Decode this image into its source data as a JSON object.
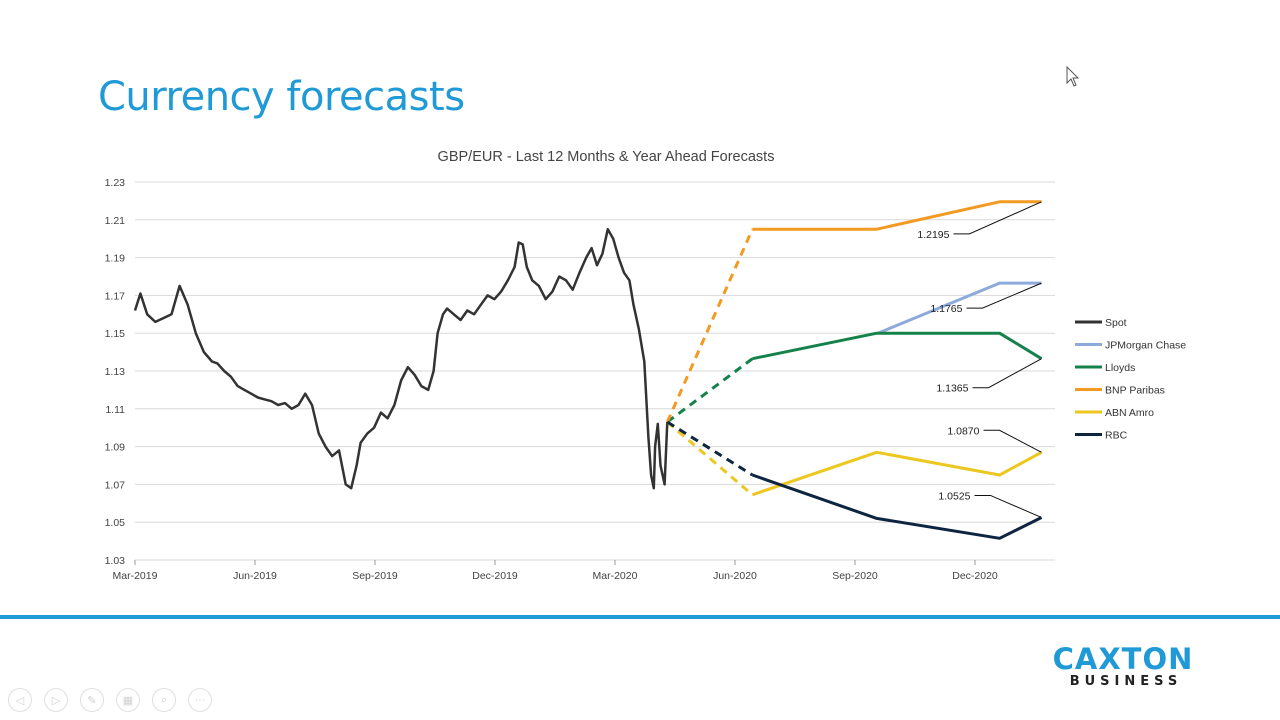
{
  "slide": {
    "title": "Currency forecasts"
  },
  "logo": {
    "main": "CAXTON",
    "sub": "BUSINESS",
    "color": "#1f9ad6"
  },
  "nav": {
    "icons": [
      "previous-icon",
      "play-icon",
      "pen-icon",
      "slides-icon",
      "zoom-icon",
      "more-icon"
    ],
    "glyphs": [
      "◁",
      "▷",
      "✎",
      "▦",
      "⌕",
      "···"
    ]
  },
  "chart_data": {
    "type": "line",
    "title": "GBP/EUR - Last 12 Months & Year Ahead Forecasts",
    "xlabel": "",
    "ylabel": "",
    "x_ticks": [
      "Mar-2019",
      "Jun-2019",
      "Sep-2019",
      "Dec-2019",
      "Mar-2020",
      "Jun-2020",
      "Sep-2020",
      "Dec-2020"
    ],
    "x_range": [
      "2019-03-01",
      "2021-01-10"
    ],
    "ylim": [
      1.03,
      1.23
    ],
    "y_ticks": [
      1.03,
      1.05,
      1.07,
      1.09,
      1.11,
      1.13,
      1.15,
      1.17,
      1.19,
      1.21,
      1.23
    ],
    "grid": true,
    "legend_position": "right",
    "series": [
      {
        "name": "Spot",
        "color": "#333333",
        "x": [
          "2019-03-01",
          "2019-03-05",
          "2019-03-10",
          "2019-03-16",
          "2019-03-22",
          "2019-03-28",
          "2019-04-03",
          "2019-04-09",
          "2019-04-15",
          "2019-04-21",
          "2019-04-27",
          "2019-05-01",
          "2019-05-06",
          "2019-05-11",
          "2019-05-16",
          "2019-05-21",
          "2019-05-26",
          "2019-05-31",
          "2019-06-05",
          "2019-06-10",
          "2019-06-15",
          "2019-06-20",
          "2019-06-25",
          "2019-06-30",
          "2019-07-05",
          "2019-07-10",
          "2019-07-15",
          "2019-07-20",
          "2019-07-25",
          "2019-07-30",
          "2019-08-04",
          "2019-08-08",
          "2019-08-12",
          "2019-08-15",
          "2019-08-20",
          "2019-08-25",
          "2019-08-30",
          "2019-09-04",
          "2019-09-09",
          "2019-09-14",
          "2019-09-19",
          "2019-09-24",
          "2019-09-29",
          "2019-10-04",
          "2019-10-08",
          "2019-10-11",
          "2019-10-15",
          "2019-10-18",
          "2019-10-23",
          "2019-10-28",
          "2019-11-02",
          "2019-11-07",
          "2019-11-12",
          "2019-11-17",
          "2019-11-22",
          "2019-11-27",
          "2019-12-02",
          "2019-12-07",
          "2019-12-10",
          "2019-12-13",
          "2019-12-16",
          "2019-12-20",
          "2019-12-25",
          "2019-12-30",
          "2020-01-04",
          "2020-01-09",
          "2020-01-14",
          "2020-01-19",
          "2020-01-24",
          "2020-01-29",
          "2020-02-02",
          "2020-02-06",
          "2020-02-10",
          "2020-02-14",
          "2020-02-18",
          "2020-02-22",
          "2020-02-26",
          "2020-03-01",
          "2020-03-04",
          "2020-03-08",
          "2020-03-12",
          "2020-03-15",
          "2020-03-17",
          "2020-03-19",
          "2020-03-20",
          "2020-03-22",
          "2020-03-24",
          "2020-03-27",
          "2020-03-29"
        ],
        "y": [
          1.162,
          1.171,
          1.16,
          1.156,
          1.158,
          1.16,
          1.175,
          1.165,
          1.15,
          1.14,
          1.135,
          1.134,
          1.13,
          1.127,
          1.122,
          1.12,
          1.118,
          1.116,
          1.115,
          1.114,
          1.112,
          1.113,
          1.11,
          1.112,
          1.118,
          1.112,
          1.097,
          1.09,
          1.085,
          1.088,
          1.07,
          1.068,
          1.08,
          1.092,
          1.097,
          1.1,
          1.108,
          1.105,
          1.112,
          1.125,
          1.132,
          1.128,
          1.122,
          1.12,
          1.13,
          1.15,
          1.16,
          1.163,
          1.16,
          1.157,
          1.162,
          1.16,
          1.165,
          1.17,
          1.168,
          1.172,
          1.178,
          1.185,
          1.198,
          1.197,
          1.185,
          1.178,
          1.175,
          1.168,
          1.172,
          1.18,
          1.178,
          1.173,
          1.182,
          1.19,
          1.195,
          1.186,
          1.192,
          1.205,
          1.2,
          1.19,
          1.182,
          1.178,
          1.165,
          1.152,
          1.135,
          1.095,
          1.075,
          1.068,
          1.09,
          1.102,
          1.08,
          1.07,
          1.103
        ]
      },
      {
        "name": "JPMorgan Chase",
        "color": "#8eaadb",
        "x": [
          "2020-09-01",
          "2020-11-30",
          "2020-12-31"
        ],
        "y": [
          1.15,
          1.1765,
          1.1765
        ]
      },
      {
        "name": "Lloyds",
        "color": "#15824b",
        "x": [
          "2020-03-29",
          "2020-05-31",
          "2020-08-31",
          "2020-11-30",
          "2020-12-31"
        ],
        "y": [
          1.103,
          1.1365,
          1.15,
          1.15,
          1.1365
        ],
        "dashed_until_index": 1
      },
      {
        "name": "BNP Paribas",
        "color": "#f29a22",
        "x": [
          "2020-03-29",
          "2020-05-31",
          "2020-08-31",
          "2020-11-30",
          "2020-12-31"
        ],
        "y": [
          1.103,
          1.205,
          1.205,
          1.2195,
          1.2195
        ],
        "dashed_until_index": 1
      },
      {
        "name": "ABN Amro",
        "color": "#ecc71f",
        "x": [
          "2020-03-29",
          "2020-05-31",
          "2020-08-31",
          "2020-11-30",
          "2020-12-31"
        ],
        "y": [
          1.103,
          1.0645,
          1.087,
          1.075,
          1.087
        ],
        "dashed_until_index": 1
      },
      {
        "name": "RBC",
        "color": "#0d2540",
        "x": [
          "2020-03-29",
          "2020-05-31",
          "2020-08-31",
          "2020-11-30",
          "2020-12-31"
        ],
        "y": [
          1.103,
          1.075,
          1.052,
          1.0415,
          1.0525
        ],
        "dashed_until_index": 1
      }
    ],
    "annotations": [
      {
        "text": "1.2195",
        "series": "BNP Paribas"
      },
      {
        "text": "1.1765",
        "series": "JPMorgan Chase"
      },
      {
        "text": "1.1365",
        "series": "Lloyds"
      },
      {
        "text": "1.0870",
        "series": "ABN Amro"
      },
      {
        "text": "1.0525",
        "series": "RBC"
      }
    ]
  }
}
